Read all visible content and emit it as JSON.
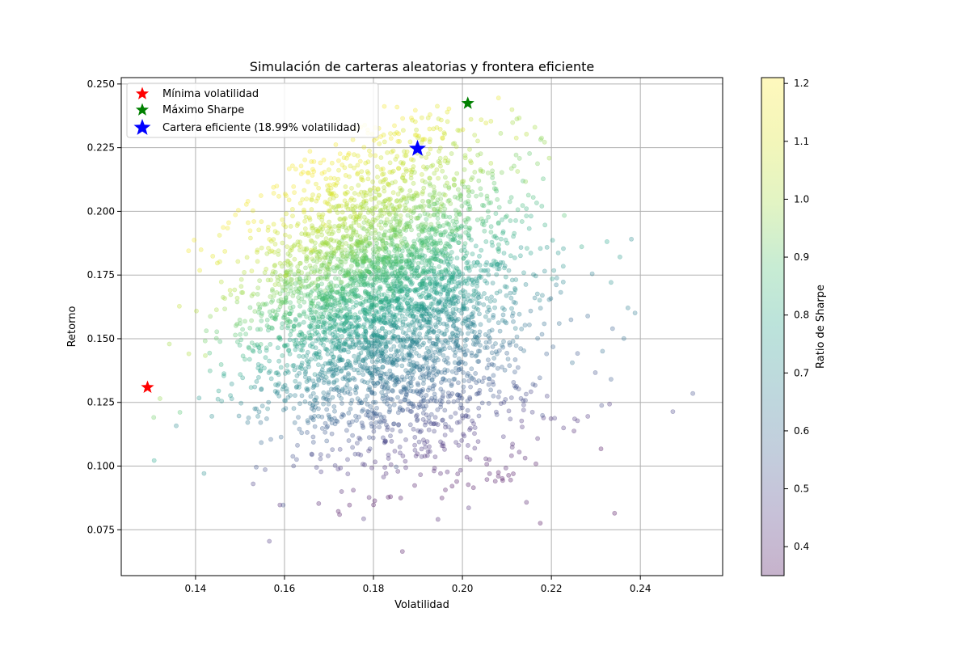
{
  "chart_data": {
    "type": "scatter",
    "title": "Simulación de carteras aleatorias y frontera eficiente",
    "xlabel": "Volatilidad",
    "ylabel": "Retorno",
    "xlim": [
      0.1233,
      0.2585
    ],
    "ylim": [
      0.057,
      0.2525
    ],
    "x_ticks": [
      "0.14",
      "0.16",
      "0.18",
      "0.20",
      "0.22",
      "0.24"
    ],
    "y_ticks": [
      "0.075",
      "0.100",
      "0.125",
      "0.150",
      "0.175",
      "0.200",
      "0.225",
      "0.250"
    ],
    "grid": true,
    "legend_position": "top-left",
    "colormap": "viridis",
    "point_alpha": 0.3,
    "colorbar": {
      "label": "Ratio de Sharpe",
      "range": [
        0.35,
        1.21
      ],
      "ticks": [
        "0.4",
        "0.5",
        "0.6",
        "0.7",
        "0.8",
        "0.9",
        "1.0",
        "1.1",
        "1.2"
      ]
    },
    "markers": [
      {
        "label": "Mínima volatilidad",
        "x": 0.1292,
        "y": 0.1309,
        "color": "#ff0000",
        "size": "medium"
      },
      {
        "label": "Máximo Sharpe",
        "x": 0.2012,
        "y": 0.2424,
        "color": "#008000",
        "size": "medium"
      },
      {
        "label": "Cartera eficiente (18.99% volatilidad)",
        "x": 0.1899,
        "y": 0.2246,
        "color": "#0000ff",
        "size": "large"
      }
    ],
    "points": [
      [
        0.2001,
        0.2321,
        1.12
      ],
      [
        0.2081,
        0.2445,
        1.14
      ],
      [
        0.2064,
        0.2189,
        1.02
      ],
      [
        0.2053,
        0.2347,
        1.1
      ],
      [
        0.2121,
        0.2288,
        1.05
      ],
      [
        0.2195,
        0.2209,
        0.98
      ],
      [
        0.1955,
        0.2289,
        1.12
      ],
      [
        0.1885,
        0.2204,
        1.1
      ],
      [
        0.1912,
        0.2283,
        1.15
      ],
      [
        0.2268,
        0.1861,
        0.8
      ],
      [
        0.2325,
        0.1881,
        0.78
      ],
      [
        0.2354,
        0.1821,
        0.75
      ],
      [
        0.2334,
        0.1721,
        0.72
      ],
      [
        0.2363,
        0.1501,
        0.62
      ],
      [
        0.2388,
        0.1601,
        0.65
      ],
      [
        0.2372,
        0.1621,
        0.66
      ],
      [
        0.2315,
        0.1451,
        0.62
      ],
      [
        0.2313,
        0.1238,
        0.51
      ],
      [
        0.2247,
        0.1406,
        0.62
      ],
      [
        0.218,
        0.1199,
        0.52
      ],
      [
        0.2334,
        0.1341,
        0.56
      ],
      [
        0.2473,
        0.1214,
        0.49
      ],
      [
        0.2518,
        0.1285,
        0.52
      ],
      [
        0.2342,
        0.0815,
        0.34
      ],
      [
        0.2175,
        0.0776,
        0.35
      ],
      [
        0.2144,
        0.0858,
        0.38
      ],
      [
        0.1865,
        0.0665,
        0.36
      ],
      [
        0.1566,
        0.0705,
        0.45
      ],
      [
        0.1597,
        0.0847,
        0.52
      ],
      [
        0.1778,
        0.0793,
        0.44
      ],
      [
        0.1945,
        0.0791,
        0.41
      ],
      [
        0.2014,
        0.0836,
        0.42
      ],
      [
        0.1307,
        0.1022,
        0.78
      ],
      [
        0.1306,
        0.1191,
        0.92
      ],
      [
        0.132,
        0.1265,
        0.97
      ],
      [
        0.1365,
        0.1211,
        0.89
      ],
      [
        0.1419,
        0.0971,
        0.71
      ],
      [
        0.1422,
        0.1434,
        0.99
      ],
      [
        0.1385,
        0.1441,
        1.01
      ],
      [
        0.2202,
        0.1735,
        0.77
      ],
      [
        0.2229,
        0.1984,
        0.89
      ],
      [
        0.2124,
        0.2157,
        0.99
      ],
      [
        0.2142,
        0.2117,
        0.96
      ],
      [
        0.1851,
        0.0997,
        0.53
      ]
    ]
  }
}
